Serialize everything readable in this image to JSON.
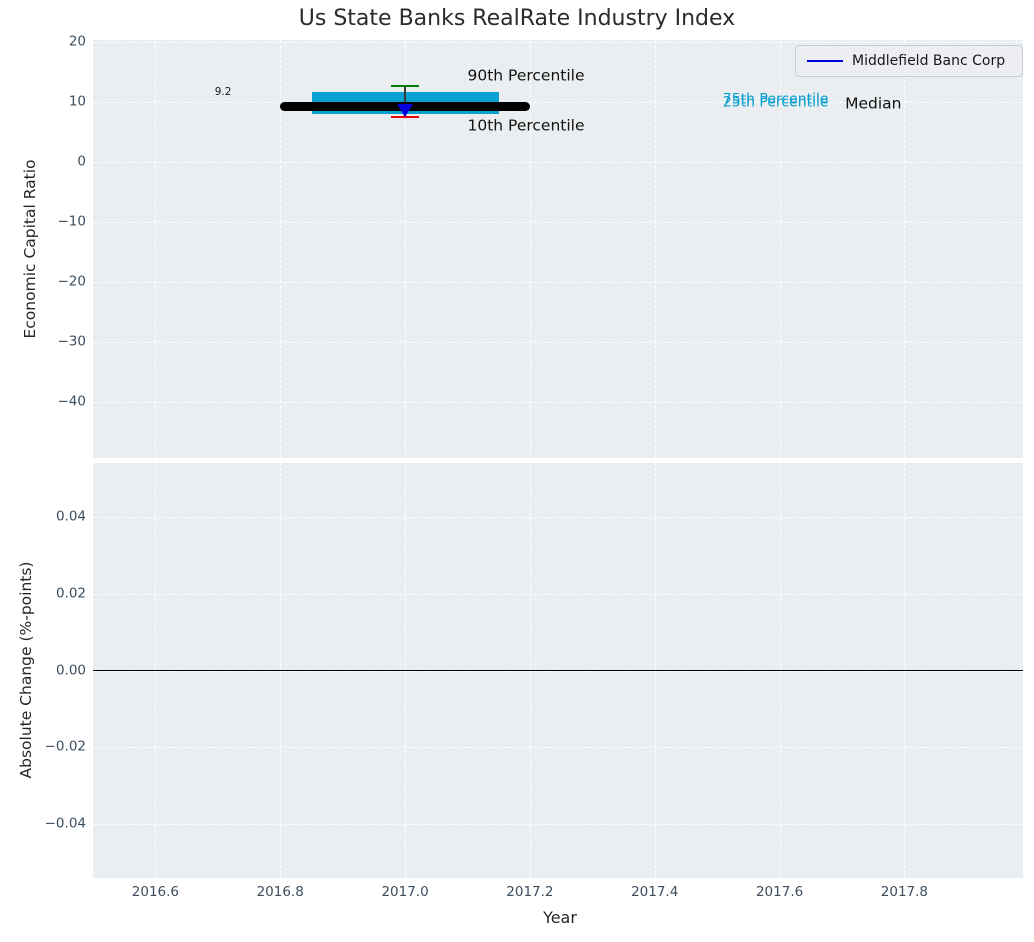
{
  "title": "Us State Banks RealRate Industry Index",
  "chart_data": [
    {
      "type": "boxplot",
      "title": "Us State Banks RealRate Industry Index",
      "ylabel": "Economic Capital Ratio",
      "xlim": [
        2016.5,
        2017.99
      ],
      "ylim": [
        -49.4,
        20.3
      ],
      "xticks": [
        "2016.6",
        "2016.8",
        "2017.0",
        "2017.2",
        "2017.4",
        "2017.6",
        "2017.8"
      ],
      "xtick_values": [
        2016.6,
        2016.8,
        2017.0,
        2017.2,
        2017.4,
        2017.6,
        2017.8
      ],
      "yticks": [
        "20",
        "10",
        "0",
        "−10",
        "−20",
        "−30",
        "−40"
      ],
      "ytick_values": [
        20,
        10,
        0,
        -10,
        -20,
        -30,
        -40
      ],
      "grid": {
        "color": "#ffffff",
        "style": "dashed"
      },
      "background": "#ebeef0",
      "box": {
        "x_center": 2017.0,
        "box_x_range": [
          2016.85,
          2017.15
        ],
        "median_x_range": [
          2016.8,
          2017.2
        ],
        "p10": 7.5,
        "p25": 8.0,
        "median": 9.2,
        "p75": 11.6,
        "p90": 12.6,
        "median_value_label": "9.2",
        "colors": {
          "box": "#089fd1",
          "median_line": "#000000",
          "p90_cap": "#008000",
          "p10_cap": "#e50000",
          "whisker": "#3a3a3a"
        }
      },
      "series": [
        {
          "name": "Middlefield Banc Corp",
          "x": 2017.0,
          "y": 9.2,
          "marker": "caret-down",
          "color": "#0000dd"
        }
      ],
      "annotations": [
        {
          "id": "median-value",
          "text": "9.2",
          "x": 2016.695,
          "y": 11.4,
          "color": "#1a1a1a",
          "size": 10.5
        },
        {
          "id": "p90-label",
          "text": "90th Percentile",
          "x": 2017.1,
          "y": 14.3,
          "color": "#111111",
          "size": 15.5
        },
        {
          "id": "p10-label",
          "text": "10th Percentile",
          "x": 2017.1,
          "y": 6.05,
          "color": "#111111",
          "size": 15.5
        },
        {
          "id": "p75-label",
          "text": "75th Percentile",
          "x": 2017.509,
          "y": 10.25,
          "color": "#089fd1",
          "size": 14
        },
        {
          "id": "p25-label",
          "text": "25th Percentile",
          "x": 2017.509,
          "y": 9.85,
          "color": "#089fd1",
          "size": 14
        },
        {
          "id": "median-label",
          "text": "Median",
          "x": 2017.705,
          "y": 9.65,
          "color": "#111111",
          "size": 15.5
        }
      ],
      "legend": {
        "label": "Middlefield Banc Corp",
        "line_color": "#0000dd",
        "location": "upper right"
      }
    },
    {
      "type": "line",
      "ylabel": "Absolute Change (%-points)",
      "xlabel": "Year",
      "xlim": [
        2016.5,
        2017.99
      ],
      "ylim": [
        -0.054,
        0.054
      ],
      "xticks": [
        "2016.6",
        "2016.8",
        "2017.0",
        "2017.2",
        "2017.4",
        "2017.6",
        "2017.8"
      ],
      "xtick_values": [
        2016.6,
        2016.8,
        2017.0,
        2017.2,
        2017.4,
        2017.6,
        2017.8
      ],
      "yticks": [
        "0.04",
        "0.02",
        "0.00",
        "−0.02",
        "−0.04"
      ],
      "ytick_values": [
        0.04,
        0.02,
        0.0,
        -0.02,
        -0.04
      ],
      "grid": {
        "color": "#ffffff",
        "style": "dashed"
      },
      "background": "#ebeef0",
      "zero_line": {
        "y": 0.0,
        "color": "#000000"
      },
      "series": []
    }
  ]
}
